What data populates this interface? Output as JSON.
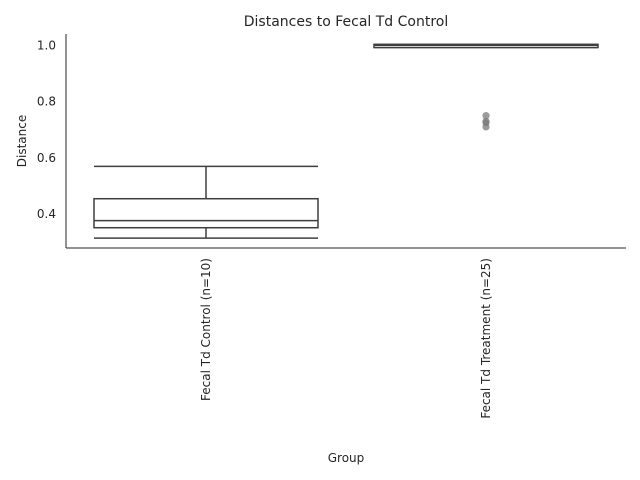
{
  "chart_data": {
    "type": "boxplot",
    "title": "Distances to Fecal Td Control",
    "xlabel": "Group",
    "ylabel": "Distance",
    "ylim": [
      0.28,
      1.04
    ],
    "yticks": [
      0.4,
      0.6,
      0.8,
      1.0
    ],
    "ytick_labels": [
      "0.4",
      "0.6",
      "0.8",
      "1.0"
    ],
    "grid": false,
    "colors": {
      "box_edge": "#3f3f3f",
      "axis": "#262626",
      "outlier": "#7a7a7a"
    },
    "categories": [
      "Fecal Td Control (n=10)",
      "Fecal Td Treatment (n=25)"
    ],
    "boxes": [
      {
        "group": "Fecal Td Control (n=10)",
        "whisker_low": 0.315,
        "q1": 0.352,
        "median": 0.377,
        "q3": 0.455,
        "whisker_high": 0.57,
        "outliers": []
      },
      {
        "group": "Fecal Td Treatment (n=25)",
        "whisker_low": 0.992,
        "q1": 0.992,
        "median": 1.0,
        "q3": 1.003,
        "whisker_high": 1.003,
        "outliers": [
          0.75,
          0.73,
          0.725,
          0.71
        ]
      }
    ]
  }
}
